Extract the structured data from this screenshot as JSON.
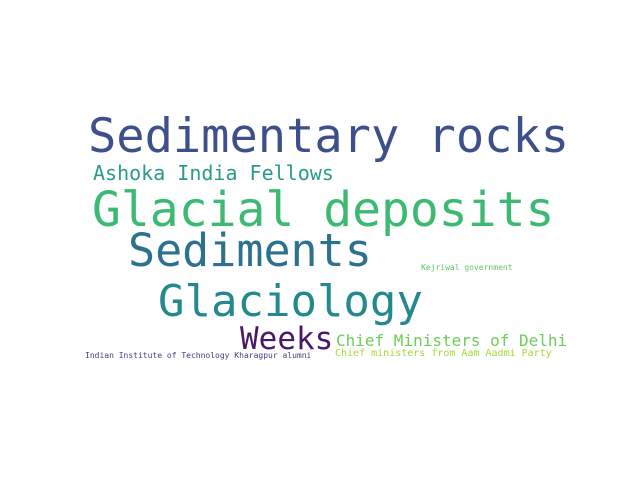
{
  "cloud": {
    "words": [
      {
        "text": "Sedimentary rocks",
        "color": "#3e4f8a"
      },
      {
        "text": "Glacial deposits",
        "color": "#3cba74"
      },
      {
        "text": "Sediments",
        "color": "#2c718e"
      },
      {
        "text": "Glaciology",
        "color": "#23898e"
      },
      {
        "text": "Ashoka India Fellows",
        "color": "#2a9b8a"
      },
      {
        "text": "Weeks",
        "color": "#48186a"
      },
      {
        "text": "Chief Ministers of Delhi",
        "color": "#6dcd59"
      },
      {
        "text": "Chief ministers from Aam Aadmi Party",
        "color": "#a5db36"
      },
      {
        "text": "Indian Institute of Technology Kharagpur alumni",
        "color": "#433e85"
      },
      {
        "text": "Kejriwal government",
        "color": "#5ec962"
      }
    ]
  }
}
